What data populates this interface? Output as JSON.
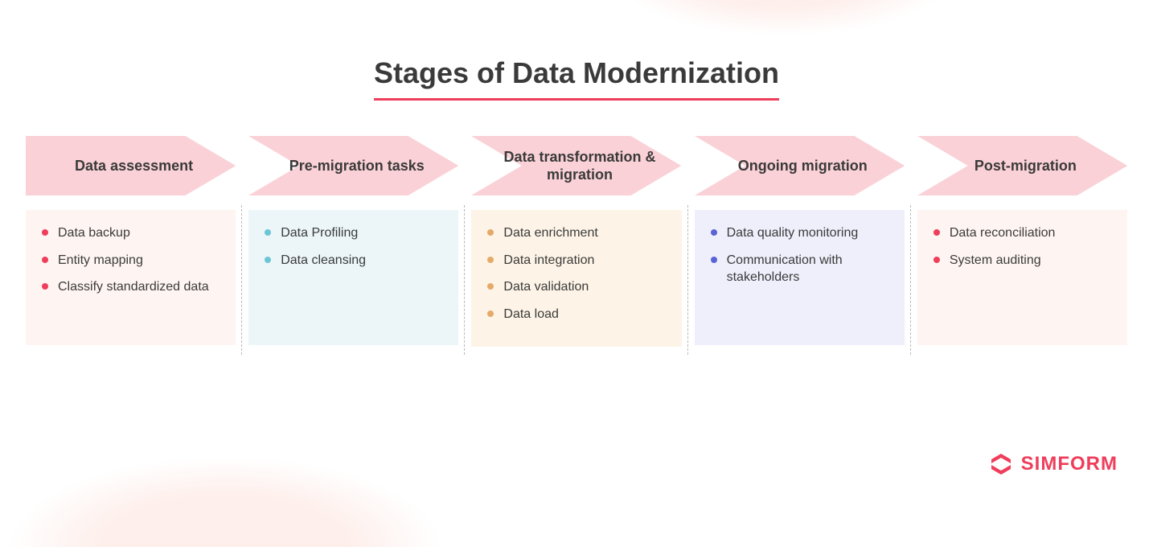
{
  "title": "Stages of Data Modernization",
  "title_color": "#3a3a3a",
  "title_fontsize": 36,
  "underline_color": "#ef3e5b",
  "background_color": "#ffffff",
  "wave_color": "#fde8e3",
  "text_color": "#3a3a3a",
  "divider_color": "#b8b8b8",
  "chevron_fill": "#fad1d7",
  "stages": [
    {
      "label": "Data\nassessment",
      "card_bg": "#fef5f2",
      "bullet_color": "#ef3e5b",
      "items": [
        "Data backup",
        "Entity mapping",
        "Classify standardized data"
      ]
    },
    {
      "label": "Pre-migration tasks",
      "card_bg": "#ecf6f8",
      "bullet_color": "#6bc5d6",
      "items": [
        "Data Profiling",
        "Data cleansing"
      ]
    },
    {
      "label": "Data transformation & migration",
      "card_bg": "#fdf4e7",
      "bullet_color": "#e7a96a",
      "items": [
        "Data enrichment",
        "Data integration",
        "Data validation",
        "Data load"
      ]
    },
    {
      "label": "Ongoing migration",
      "card_bg": "#eeeffb",
      "bullet_color": "#5b62d6",
      "items": [
        "Data quality monitoring",
        "Communication with stakeholders"
      ]
    },
    {
      "label": "Post-migration",
      "card_bg": "#fef5f2",
      "bullet_color": "#ef3e5b",
      "items": [
        "Data reconciliation",
        "System auditing"
      ]
    }
  ],
  "logo": {
    "text": "SIMFORM",
    "color": "#ef3e5b"
  }
}
